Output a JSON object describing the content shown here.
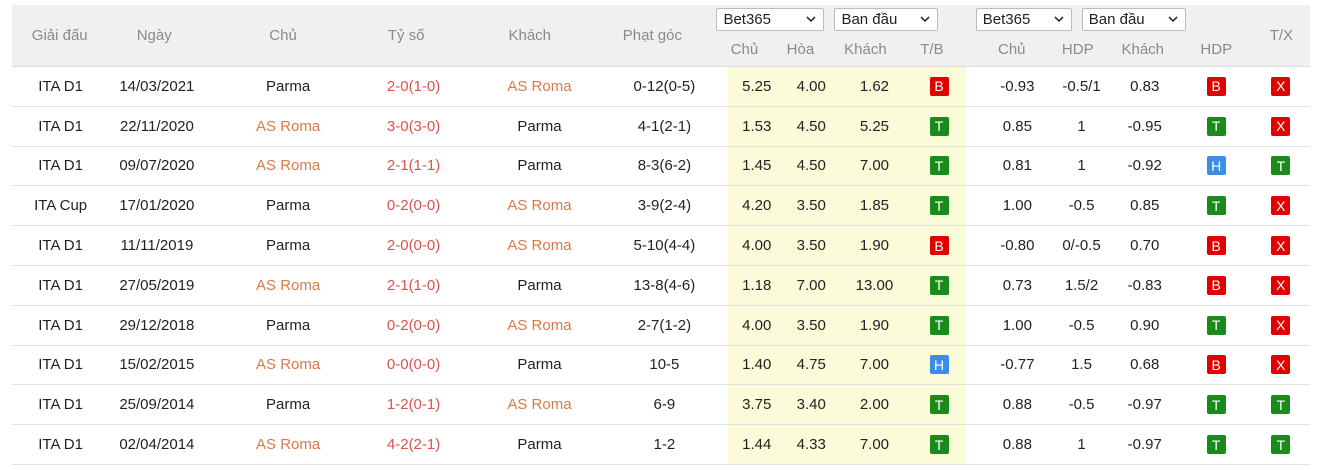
{
  "header": {
    "league": "Giải đấu",
    "date": "Ngày",
    "home": "Chủ",
    "score": "Tỷ số",
    "away": "Khách",
    "corners": "Phạt góc",
    "group1": {
      "bookmaker": "Bet365",
      "type": "Ban đầu"
    },
    "group2": {
      "bookmaker": "Bet365",
      "type": "Ban đầu"
    },
    "sub1": {
      "home": "Chủ",
      "draw": "Hòa",
      "away": "Khách",
      "tb": "T/B"
    },
    "sub2": {
      "home": "Chủ",
      "hdp": "HDP",
      "away": "Khách",
      "hdp_res": "HDP"
    },
    "tx": "T/X"
  },
  "rows": [
    {
      "league": "ITA D1",
      "date": "14/03/2021",
      "home": "Parma",
      "home_orange": false,
      "score": "2-0",
      "ht": "(1-0)",
      "away": "AS Roma",
      "away_orange": true,
      "corners": "0-12(0-5)",
      "o_home": "5.25",
      "o_draw": "4.00",
      "o_away": "1.62",
      "tb": "B",
      "tb_color": "red",
      "a_home": "-0.93",
      "a_hdp": "-0.5/1",
      "a_away": "0.83",
      "hdp": "B",
      "hdp_color": "red",
      "tx": "X",
      "tx_color": "red"
    },
    {
      "league": "ITA D1",
      "date": "22/11/2020",
      "home": "AS Roma",
      "home_orange": true,
      "score": "3-0",
      "ht": "(3-0)",
      "away": "Parma",
      "away_orange": false,
      "corners": "4-1(2-1)",
      "o_home": "1.53",
      "o_draw": "4.50",
      "o_away": "5.25",
      "tb": "T",
      "tb_color": "green",
      "a_home": "0.85",
      "a_hdp": "1",
      "a_away": "-0.95",
      "hdp": "T",
      "hdp_color": "green",
      "tx": "X",
      "tx_color": "red"
    },
    {
      "league": "ITA D1",
      "date": "09/07/2020",
      "home": "AS Roma",
      "home_orange": true,
      "score": "2-1",
      "ht": "(1-1)",
      "away": "Parma",
      "away_orange": false,
      "corners": "8-3(6-2)",
      "o_home": "1.45",
      "o_draw": "4.50",
      "o_away": "7.00",
      "tb": "T",
      "tb_color": "green",
      "a_home": "0.81",
      "a_hdp": "1",
      "a_away": "-0.92",
      "hdp": "H",
      "hdp_color": "blue",
      "tx": "T",
      "tx_color": "green"
    },
    {
      "league": "ITA Cup",
      "date": "17/01/2020",
      "home": "Parma",
      "home_orange": false,
      "score": "0-2",
      "ht": "(0-0)",
      "away": "AS Roma",
      "away_orange": true,
      "corners": "3-9(2-4)",
      "o_home": "4.20",
      "o_draw": "3.50",
      "o_away": "1.85",
      "tb": "T",
      "tb_color": "green",
      "a_home": "1.00",
      "a_hdp": "-0.5",
      "a_away": "0.85",
      "hdp": "T",
      "hdp_color": "green",
      "tx": "X",
      "tx_color": "red"
    },
    {
      "league": "ITA D1",
      "date": "11/11/2019",
      "home": "Parma",
      "home_orange": false,
      "score": "2-0",
      "ht": "(0-0)",
      "away": "AS Roma",
      "away_orange": true,
      "corners": "5-10(4-4)",
      "o_home": "4.00",
      "o_draw": "3.50",
      "o_away": "1.90",
      "tb": "B",
      "tb_color": "red",
      "a_home": "-0.80",
      "a_hdp": "0/-0.5",
      "a_away": "0.70",
      "hdp": "B",
      "hdp_color": "red",
      "tx": "X",
      "tx_color": "red"
    },
    {
      "league": "ITA D1",
      "date": "27/05/2019",
      "home": "AS Roma",
      "home_orange": true,
      "score": "2-1",
      "ht": "(1-0)",
      "away": "Parma",
      "away_orange": false,
      "corners": "13-8(4-6)",
      "o_home": "1.18",
      "o_draw": "7.00",
      "o_away": "13.00",
      "tb": "T",
      "tb_color": "green",
      "a_home": "0.73",
      "a_hdp": "1.5/2",
      "a_away": "-0.83",
      "hdp": "B",
      "hdp_color": "red",
      "tx": "X",
      "tx_color": "red"
    },
    {
      "league": "ITA D1",
      "date": "29/12/2018",
      "home": "Parma",
      "home_orange": false,
      "score": "0-2",
      "ht": "(0-0)",
      "away": "AS Roma",
      "away_orange": true,
      "corners": "2-7(1-2)",
      "o_home": "4.00",
      "o_draw": "3.50",
      "o_away": "1.90",
      "tb": "T",
      "tb_color": "green",
      "a_home": "1.00",
      "a_hdp": "-0.5",
      "a_away": "0.90",
      "hdp": "T",
      "hdp_color": "green",
      "tx": "X",
      "tx_color": "red"
    },
    {
      "league": "ITA D1",
      "date": "15/02/2015",
      "home": "AS Roma",
      "home_orange": true,
      "score": "0-0",
      "ht": "(0-0)",
      "away": "Parma",
      "away_orange": false,
      "corners": "10-5",
      "o_home": "1.40",
      "o_draw": "4.75",
      "o_away": "7.00",
      "tb": "H",
      "tb_color": "blue",
      "a_home": "-0.77",
      "a_hdp": "1.5",
      "a_away": "0.68",
      "hdp": "B",
      "hdp_color": "red",
      "tx": "X",
      "tx_color": "red"
    },
    {
      "league": "ITA D1",
      "date": "25/09/2014",
      "home": "Parma",
      "home_orange": false,
      "score": "1-2",
      "ht": "(0-1)",
      "away": "AS Roma",
      "away_orange": true,
      "corners": "6-9",
      "o_home": "3.75",
      "o_draw": "3.40",
      "o_away": "2.00",
      "tb": "T",
      "tb_color": "green",
      "a_home": "0.88",
      "a_hdp": "-0.5",
      "a_away": "-0.97",
      "hdp": "T",
      "hdp_color": "green",
      "tx": "T",
      "tx_color": "green"
    },
    {
      "league": "ITA D1",
      "date": "02/04/2014",
      "home": "AS Roma",
      "home_orange": true,
      "score": "4-2",
      "ht": "(2-1)",
      "away": "Parma",
      "away_orange": false,
      "corners": "1-2",
      "o_home": "1.44",
      "o_draw": "4.33",
      "o_away": "7.00",
      "tb": "T",
      "tb_color": "green",
      "a_home": "0.88",
      "a_hdp": "1",
      "a_away": "-0.97",
      "hdp": "T",
      "hdp_color": "green",
      "tx": "T",
      "tx_color": "green"
    }
  ],
  "colors": {
    "red": "#e00000",
    "green": "#1a8a1a",
    "blue": "#3a8ee6",
    "team_orange": "#d97a47",
    "score_red": "#d9534f",
    "odds_bg": "#fbfbd9"
  }
}
